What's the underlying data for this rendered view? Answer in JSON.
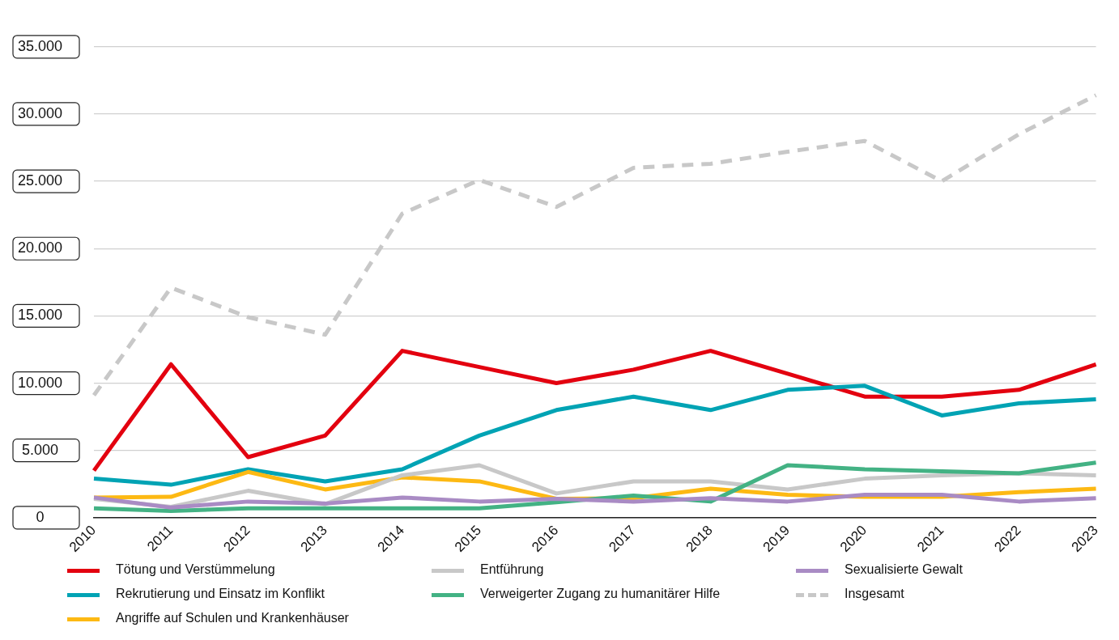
{
  "chart_data": {
    "type": "line",
    "categories": [
      "2010",
      "2011",
      "2012",
      "2013",
      "2014",
      "2015",
      "2016",
      "2017",
      "2018",
      "2019",
      "2020",
      "2021",
      "2022",
      "2023"
    ],
    "series": [
      {
        "name": "Tötung und Verstümmelung",
        "color": "#e3000f",
        "values": [
          3500,
          11400,
          4500,
          6100,
          12400,
          11200,
          10000,
          11000,
          12400,
          10700,
          9000,
          9000,
          9500,
          11400
        ]
      },
      {
        "name": "Rekrutierung und Einsatz im Konflikt",
        "color": "#00a3b4",
        "values": [
          2900,
          2450,
          3600,
          2700,
          3600,
          6100,
          8000,
          9000,
          8000,
          9500,
          9800,
          7600,
          8500,
          8800
        ]
      },
      {
        "name": "Angriffe auf Schulen und Krankenhäuser",
        "color": "#fdb913",
        "values": [
          1500,
          1550,
          3400,
          2100,
          3000,
          2700,
          1400,
          1450,
          2150,
          1700,
          1550,
          1550,
          1900,
          2150
        ]
      },
      {
        "name": "Entführung",
        "color": "#c8c8c8",
        "values": [
          1400,
          800,
          2000,
          1000,
          3150,
          3900,
          1800,
          2700,
          2700,
          2100,
          2900,
          3150,
          3300,
          3150
        ]
      },
      {
        "name": "Verweigerter Zugang zu humanitärer Hilfe",
        "color": "#43b284",
        "values": [
          700,
          500,
          700,
          700,
          700,
          700,
          1150,
          1650,
          1200,
          3900,
          3600,
          3450,
          3300,
          4100
        ]
      },
      {
        "name": "Sexualisierte Gewalt",
        "color": "#a98bc4",
        "values": [
          1500,
          750,
          1200,
          1050,
          1500,
          1200,
          1400,
          1200,
          1450,
          1200,
          1700,
          1700,
          1200,
          1450
        ]
      },
      {
        "name": "Insgesamt",
        "color": "#c8c8c8",
        "line_style": "dashed",
        "values": [
          9100,
          17100,
          14900,
          13600,
          22600,
          25100,
          23100,
          26000,
          26300,
          27200,
          28000,
          25000,
          28500,
          31400
        ]
      }
    ],
    "ylim": [
      0,
      35000
    ],
    "yticks": [
      {
        "value": 0,
        "label": "0"
      },
      {
        "value": 5000,
        "label": "5.000"
      },
      {
        "value": 10000,
        "label": "10.000"
      },
      {
        "value": 15000,
        "label": "15.000"
      },
      {
        "value": 20000,
        "label": "20.000"
      },
      {
        "value": 25000,
        "label": "25.000"
      },
      {
        "value": 30000,
        "label": "30.000"
      },
      {
        "value": 35000,
        "label": "35.000"
      }
    ],
    "grid": "y",
    "legend": "bottom",
    "marker": "none",
    "line_style": "solid"
  }
}
